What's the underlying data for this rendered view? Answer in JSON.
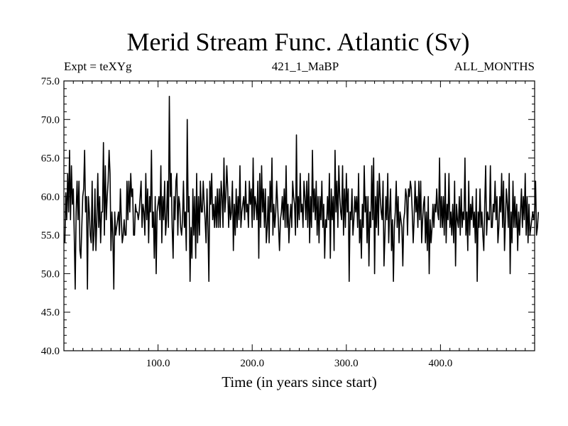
{
  "chart_data": {
    "type": "line",
    "title": "Merid Stream Func. Atlantic (Sv)",
    "subtitle_left": "Expt = teXYg",
    "subtitle_center": "421_1_MaBP",
    "subtitle_right": "ALL_MONTHS",
    "xlabel": "Time (in years since start)",
    "ylabel": "",
    "xlim": [
      0,
      500
    ],
    "ylim": [
      40,
      75
    ],
    "x_ticks": [
      100,
      200,
      300,
      400
    ],
    "x_tick_labels": [
      "100.0",
      "200.0",
      "300.0",
      "400.0"
    ],
    "y_ticks": [
      40,
      45,
      50,
      55,
      60,
      65,
      70,
      75
    ],
    "y_tick_labels": [
      "40.0",
      "45.0",
      "50.0",
      "55.0",
      "60.0",
      "65.0",
      "70.0",
      "75.0"
    ],
    "grid": false,
    "x_start": 1,
    "x_step": 1,
    "values": [
      54,
      60.5,
      57,
      63,
      58,
      66,
      57,
      64,
      59,
      61,
      55,
      48,
      58,
      62,
      57,
      62,
      53,
      52,
      56,
      60,
      61,
      66,
      58,
      60,
      48,
      60,
      58,
      55,
      54,
      62,
      53,
      55,
      61,
      53,
      57,
      63,
      56,
      60,
      54,
      58,
      58,
      67,
      55,
      64,
      57,
      60,
      62,
      66,
      63,
      53,
      58,
      55,
      48,
      58,
      55,
      56,
      57,
      58,
      55,
      61,
      57,
      54,
      55,
      57,
      55,
      55,
      62,
      57,
      62,
      58,
      63,
      60,
      61,
      55,
      55,
      59,
      58,
      58,
      57,
      58,
      60,
      62,
      56,
      59,
      58,
      55,
      63,
      57,
      61,
      54,
      60,
      58,
      66,
      56,
      58,
      52,
      60,
      50,
      58,
      59,
      60,
      57,
      64,
      54,
      60,
      57,
      62,
      55,
      57,
      62,
      56,
      73,
      60,
      63,
      56,
      52,
      60,
      57,
      62,
      63,
      55,
      60,
      59,
      56,
      55,
      57,
      62,
      56,
      58,
      53,
      70,
      58,
      60,
      49,
      56,
      52,
      61,
      55,
      60,
      52,
      63,
      54,
      60,
      55,
      62,
      58,
      58,
      62,
      59,
      57,
      54,
      61,
      56,
      49,
      62,
      59,
      63,
      57,
      59,
      56,
      60,
      56,
      61,
      56,
      61,
      56,
      62,
      60,
      56,
      65,
      58,
      60,
      64,
      61,
      56,
      60,
      57,
      58,
      62,
      53,
      59,
      55,
      61,
      56,
      60,
      57,
      64,
      56,
      58,
      59,
      60,
      57,
      62,
      58,
      59,
      56,
      62,
      59,
      61,
      56,
      65,
      57,
      60,
      59,
      57,
      62,
      52,
      63,
      56,
      64,
      58,
      61,
      56,
      61,
      54,
      56,
      60,
      54,
      62,
      58,
      65,
      55,
      59,
      56,
      58,
      62,
      59,
      56,
      53,
      57,
      58,
      60,
      57,
      61,
      56,
      64,
      56,
      59,
      54,
      57,
      59,
      56,
      62,
      60,
      59,
      55,
      68,
      56,
      60,
      57,
      63,
      58,
      59,
      56,
      62,
      60,
      57,
      62,
      56,
      63,
      54,
      60,
      56,
      66,
      58,
      61,
      57,
      62,
      55,
      60,
      54,
      60,
      57,
      62,
      56,
      59,
      52,
      57,
      56,
      60,
      57,
      63,
      52,
      61,
      57,
      60,
      53,
      66,
      58,
      62,
      56,
      64,
      60,
      58,
      57,
      64,
      55,
      61,
      56,
      63,
      58,
      61,
      49,
      58,
      57,
      61,
      55,
      57,
      60,
      58,
      60,
      56,
      63,
      54,
      57,
      52,
      59,
      56,
      64,
      58,
      60,
      54,
      60,
      51,
      58,
      56,
      64,
      57,
      65,
      50,
      60,
      56,
      62,
      55,
      63,
      60,
      58,
      57,
      62,
      51,
      55,
      60,
      57,
      63,
      54,
      58,
      61,
      53,
      57,
      49,
      56,
      58,
      62,
      56,
      60,
      54,
      58,
      57,
      56,
      51,
      57,
      58,
      61,
      60,
      55,
      61,
      60,
      62,
      61,
      58,
      54,
      57,
      62,
      58,
      60,
      56,
      62,
      57,
      62,
      54,
      57,
      59,
      60,
      54,
      58,
      53,
      60,
      50,
      57,
      54,
      56,
      59,
      56,
      59,
      58,
      61,
      58,
      57,
      65,
      56,
      60,
      56,
      60,
      55,
      63,
      54,
      59,
      57,
      63,
      56,
      58,
      55,
      59,
      54,
      62,
      51,
      59,
      57,
      56,
      60,
      55,
      61,
      56,
      58,
      57,
      65,
      55,
      58,
      53,
      62,
      55,
      59,
      57,
      60,
      56,
      58,
      54,
      61,
      49,
      58,
      56,
      61,
      56,
      58,
      55,
      53,
      59,
      64,
      55,
      58,
      57,
      57,
      64,
      56,
      56,
      59,
      58,
      62,
      57,
      60,
      54,
      56,
      60,
      58,
      63,
      56,
      62,
      53,
      57,
      61,
      59,
      56,
      63,
      50,
      58,
      54,
      62,
      56,
      60,
      56,
      59,
      53,
      58,
      55,
      58,
      61,
      56,
      60,
      57,
      63,
      55,
      60,
      54,
      59,
      55,
      56,
      57,
      58,
      57,
      58,
      62,
      55,
      56,
      58
    ]
  }
}
